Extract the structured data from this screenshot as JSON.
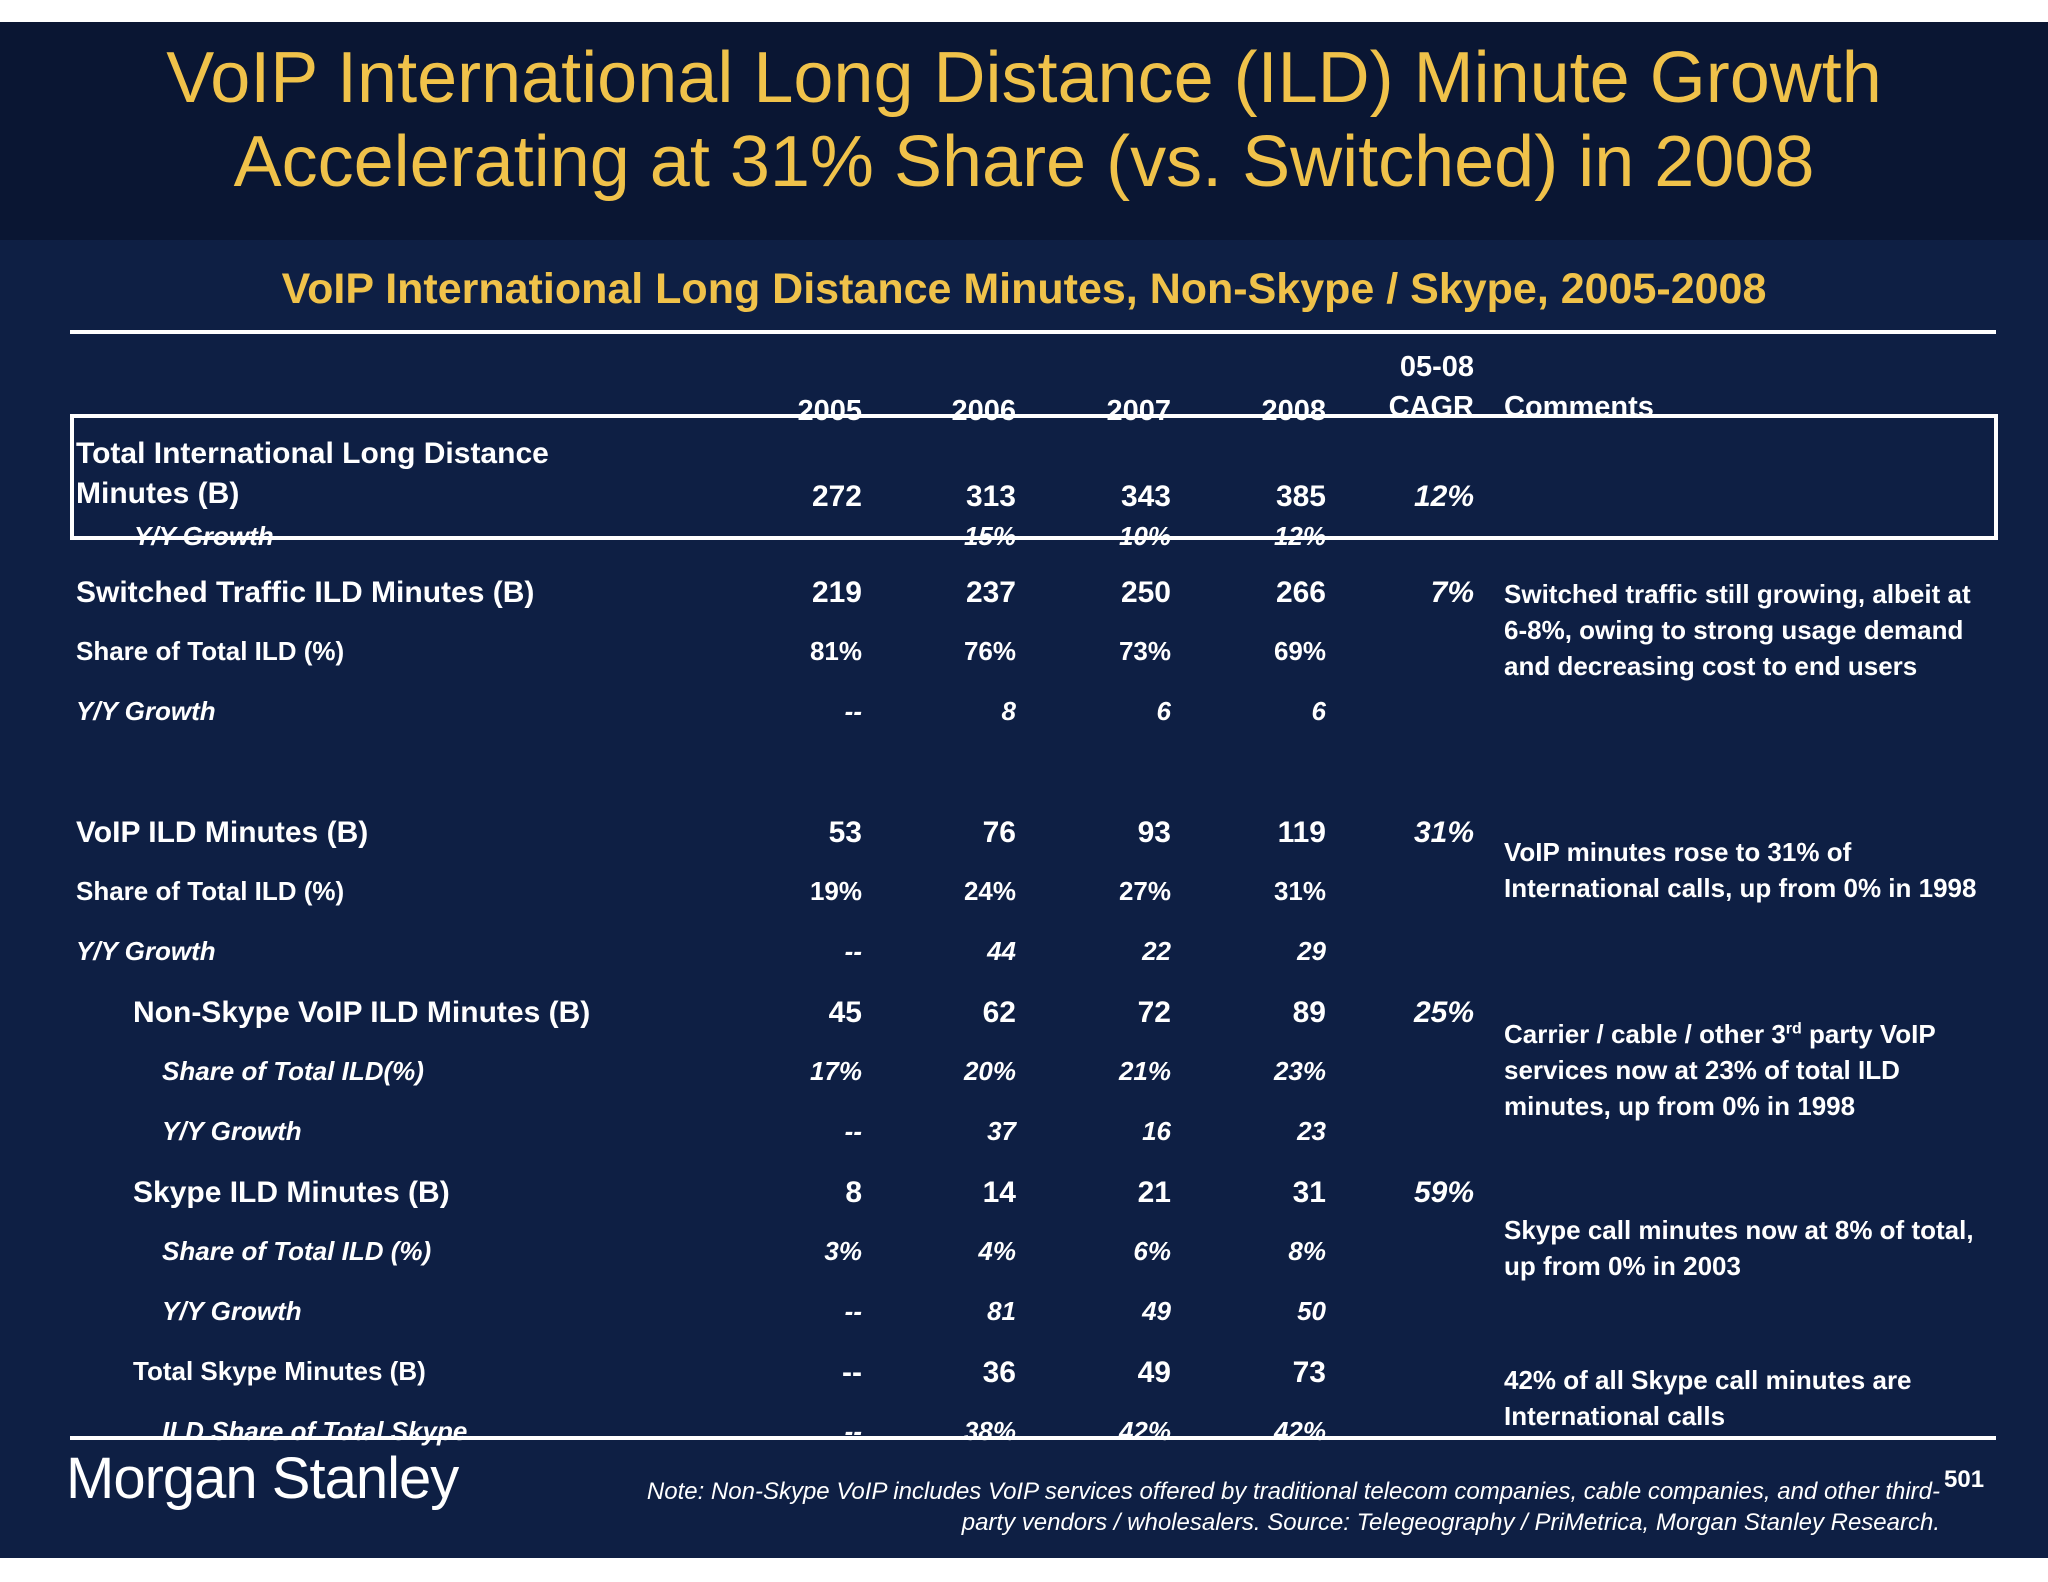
{
  "title_line1": "VoIP International Long Distance (ILD) Minute Growth",
  "title_line2": "Accelerating at 31% Share (vs. Switched) in 2008",
  "subtitle": "VoIP International Long Distance Minutes, Non-Skype / Skype, 2005-2008",
  "table": {
    "headers": {
      "y2005": "2005",
      "y2006": "2006",
      "y2007": "2007",
      "y2008": "2008",
      "cagr_line1": "05-08",
      "cagr_line2": "CAGR",
      "comments": "Comments"
    },
    "rows": [
      {
        "label_line1": "Total International Long Distance",
        "label_line2": "Minutes (B)",
        "v2005": "272",
        "v2006": "313",
        "v2007": "343",
        "v2008": "385",
        "cagr": "12%"
      },
      {
        "label": "Y/Y Growth",
        "v2005": "--",
        "v2006": "15%",
        "v2007": "10%",
        "v2008": "12%"
      },
      {
        "label": "Switched Traffic ILD Minutes (B)",
        "v2005": "219",
        "v2006": "237",
        "v2007": "250",
        "v2008": "266",
        "cagr": "7%"
      },
      {
        "label": "Share of Total ILD (%)",
        "v2005": "81%",
        "v2006": "76%",
        "v2007": "73%",
        "v2008": "69%"
      },
      {
        "label": "Y/Y Growth",
        "v2005": "--",
        "v2006": "8",
        "v2007": "6",
        "v2008": "6"
      },
      {
        "label": "VoIP ILD Minutes (B)",
        "v2005": "53",
        "v2006": "76",
        "v2007": "93",
        "v2008": "119",
        "cagr": "31%"
      },
      {
        "label": "Share of Total ILD (%)",
        "v2005": "19%",
        "v2006": "24%",
        "v2007": "27%",
        "v2008": "31%"
      },
      {
        "label": "Y/Y Growth",
        "v2005": "--",
        "v2006": "44",
        "v2007": "22",
        "v2008": "29"
      },
      {
        "label": "Non-Skype VoIP ILD Minutes (B)",
        "v2005": "45",
        "v2006": "62",
        "v2007": "72",
        "v2008": "89",
        "cagr": "25%"
      },
      {
        "label": "Share of Total ILD(%)",
        "v2005": "17%",
        "v2006": "20%",
        "v2007": "21%",
        "v2008": "23%"
      },
      {
        "label": "Y/Y Growth",
        "v2005": "--",
        "v2006": "37",
        "v2007": "16",
        "v2008": "23"
      },
      {
        "label": "Skype ILD Minutes (B)",
        "v2005": "8",
        "v2006": "14",
        "v2007": "21",
        "v2008": "31",
        "cagr": "59%"
      },
      {
        "label": "Share of Total ILD (%)",
        "v2005": "3%",
        "v2006": "4%",
        "v2007": "6%",
        "v2008": "8%"
      },
      {
        "label": "Y/Y Growth",
        "v2005": "--",
        "v2006": "81",
        "v2007": "49",
        "v2008": "50"
      },
      {
        "label": "Total Skype Minutes (B)",
        "v2005": "--",
        "v2006": "36",
        "v2007": "49",
        "v2008": "73"
      },
      {
        "label": "ILD Share of Total Skype",
        "v2005": "--",
        "v2006": "38%",
        "v2007": "42%",
        "v2008": "42%"
      }
    ],
    "comments": {
      "switched": "Switched traffic still growing, albeit at 6-8%, owing to strong usage demand and decreasing cost to end users",
      "voip": "VoIP minutes rose to 31% of International calls, up from 0% in 1998",
      "nonskype_pre": "Carrier / cable / other 3",
      "nonskype_sup": "rd",
      "nonskype_post": " party VoIP services now at 23% of total ILD minutes, up from 0% in 1998",
      "skype": "Skype call minutes now at 8% of total, up from 0% in 2003",
      "total_skype": "42% of all Skype call minutes are International calls"
    }
  },
  "logo": "Morgan Stanley",
  "footnote_line1": "Note: Non-Skype VoIP includes VoIP services offered by traditional telecom companies, cable companies, and other third-",
  "footnote_line2": "party vendors / wholesalers. Source: Telegeography / PriMetrica, Morgan Stanley Research.",
  "page_number": "501",
  "colors": {
    "background": "#0e1f44",
    "title_band": "#0a1633",
    "accent": "#f0c24a",
    "text": "#ffffff"
  }
}
